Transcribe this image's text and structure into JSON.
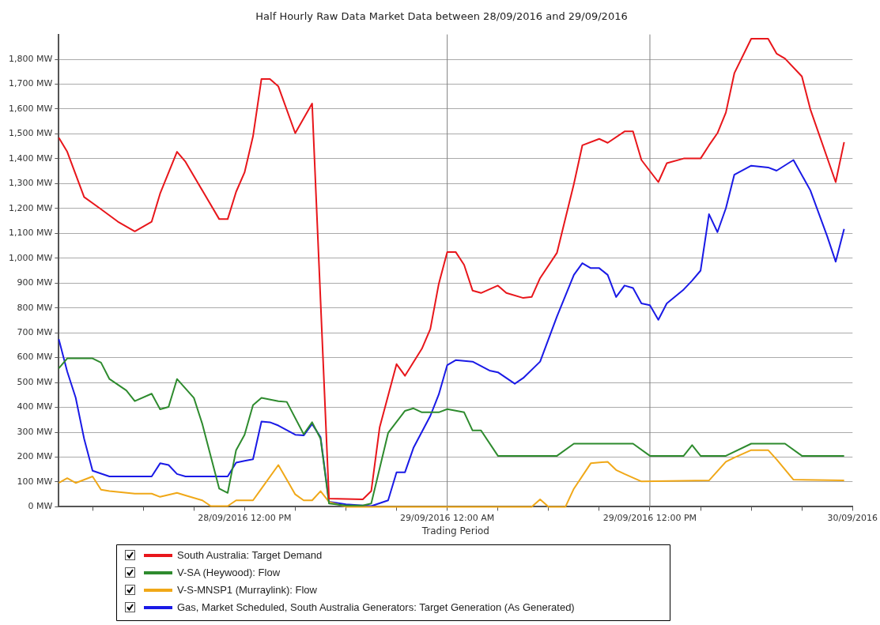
{
  "chart_data": {
    "type": "line",
    "title": "Half Hourly Raw Data Market Data between 28/09/2016 and 29/09/2016",
    "xlabel": "Trading Period",
    "xlim": [
      "2016-09-28T01:00",
      "2016-09-30T00:00"
    ],
    "xticks": [
      {
        "value": "2016-09-28T03:00",
        "label": null
      },
      {
        "value": "2016-09-28T06:00",
        "label": null
      },
      {
        "value": "2016-09-28T09:00",
        "label": null
      },
      {
        "value": "2016-09-28T12:00",
        "label": "28/09/2016 12:00 PM"
      },
      {
        "value": "2016-09-28T15:00",
        "label": null
      },
      {
        "value": "2016-09-28T18:00",
        "label": null
      },
      {
        "value": "2016-09-28T21:00",
        "label": null
      },
      {
        "value": "2016-09-29T00:00",
        "label": "29/09/2016 12:00 AM"
      },
      {
        "value": "2016-09-29T03:00",
        "label": null
      },
      {
        "value": "2016-09-29T06:00",
        "label": null
      },
      {
        "value": "2016-09-29T09:00",
        "label": null
      },
      {
        "value": "2016-09-29T12:00",
        "label": "29/09/2016 12:00 PM"
      },
      {
        "value": "2016-09-29T15:00",
        "label": null
      },
      {
        "value": "2016-09-29T18:00",
        "label": null
      },
      {
        "value": "2016-09-29T21:00",
        "label": null
      },
      {
        "value": "2016-09-30T00:00",
        "label": "30/09/2016"
      }
    ],
    "ylim": [
      0,
      1900
    ],
    "yticks": [
      {
        "value": 0,
        "label": "0 MW"
      },
      {
        "value": 100,
        "label": "100 MW"
      },
      {
        "value": 200,
        "label": "200 MW"
      },
      {
        "value": 300,
        "label": "300 MW"
      },
      {
        "value": 400,
        "label": "400 MW"
      },
      {
        "value": 500,
        "label": "500 MW"
      },
      {
        "value": 600,
        "label": "600 MW"
      },
      {
        "value": 700,
        "label": "700 MW"
      },
      {
        "value": 800,
        "label": "800 MW"
      },
      {
        "value": 900,
        "label": "900 MW"
      },
      {
        "value": 1000,
        "label": "1,000 MW"
      },
      {
        "value": 1100,
        "label": "1,100 MW"
      },
      {
        "value": 1200,
        "label": "1,200 MW"
      },
      {
        "value": 1300,
        "label": "1,300 MW"
      },
      {
        "value": 1400,
        "label": "1,400 MW"
      },
      {
        "value": 1500,
        "label": "1,500 MW"
      },
      {
        "value": 1600,
        "label": "1,600 MW"
      },
      {
        "value": 1700,
        "label": "1,700 MW"
      },
      {
        "value": 1800,
        "label": "1,800 MW"
      }
    ],
    "grid": "y",
    "legend": "bottom",
    "marker": "none",
    "ref_lines": [
      {
        "axis": "x",
        "value": "2016-09-29T00:00",
        "color": "#808080"
      },
      {
        "axis": "x",
        "value": "2016-09-29T12:00",
        "color": "#808080"
      }
    ],
    "series": [
      {
        "name": "South Australia: Target Demand",
        "color": "#e8161b",
        "x": [
          "2016-09-28T01:00",
          "2016-09-28T01:30",
          "2016-09-28T02:30",
          "2016-09-28T03:30",
          "2016-09-28T04:30",
          "2016-09-28T05:30",
          "2016-09-28T06:30",
          "2016-09-28T07:00",
          "2016-09-28T08:00",
          "2016-09-28T08:30",
          "2016-09-28T10:30",
          "2016-09-28T11:00",
          "2016-09-28T11:30",
          "2016-09-28T12:00",
          "2016-09-28T12:30",
          "2016-09-28T13:00",
          "2016-09-28T13:30",
          "2016-09-28T14:00",
          "2016-09-28T15:00",
          "2016-09-28T16:00",
          "2016-09-28T17:00",
          "2016-09-28T19:00",
          "2016-09-28T19:30",
          "2016-09-28T20:00",
          "2016-09-28T21:00",
          "2016-09-28T21:30",
          "2016-09-28T22:30",
          "2016-09-28T23:00",
          "2016-09-28T23:30",
          "2016-09-29T00:00",
          "2016-09-29T00:30",
          "2016-09-29T01:00",
          "2016-09-29T01:30",
          "2016-09-29T02:00",
          "2016-09-29T03:00",
          "2016-09-29T03:30",
          "2016-09-29T04:30",
          "2016-09-29T05:00",
          "2016-09-29T05:30",
          "2016-09-29T06:30",
          "2016-09-29T07:30",
          "2016-09-29T08:00",
          "2016-09-29T09:00",
          "2016-09-29T09:30",
          "2016-09-29T10:30",
          "2016-09-29T11:00",
          "2016-09-29T11:30",
          "2016-09-29T12:30",
          "2016-09-29T13:00",
          "2016-09-29T14:00",
          "2016-09-29T15:00",
          "2016-09-29T15:30",
          "2016-09-29T16:00",
          "2016-09-29T16:30",
          "2016-09-29T17:00",
          "2016-09-29T18:00",
          "2016-09-29T19:00",
          "2016-09-29T19:30",
          "2016-09-29T20:00",
          "2016-09-29T21:00",
          "2016-09-29T21:30",
          "2016-09-29T23:00",
          "2016-09-29T23:30"
        ],
        "values": [
          1485,
          1428,
          1246,
          1197,
          1147,
          1108,
          1147,
          1260,
          1428,
          1388,
          1157,
          1157,
          1267,
          1345,
          1490,
          1721,
          1721,
          1691,
          1503,
          1622,
          33,
          30,
          63,
          320,
          574,
          527,
          636,
          715,
          897,
          1025,
          1025,
          973,
          870,
          860,
          890,
          860,
          840,
          844,
          920,
          1022,
          1299,
          1454,
          1480,
          1464,
          1510,
          1510,
          1395,
          1306,
          1382,
          1401,
          1401,
          1454,
          1503,
          1586,
          1744,
          1883,
          1883,
          1823,
          1803,
          1731,
          1599,
          1306,
          1467
        ]
      },
      {
        "name": "V-SA (Heywood): Flow",
        "color": "#2e8b2e",
        "x": [
          "2016-09-28T01:00",
          "2016-09-28T01:30",
          "2016-09-28T03:00",
          "2016-09-28T03:30",
          "2016-09-28T04:00",
          "2016-09-28T05:00",
          "2016-09-28T05:30",
          "2016-09-28T06:30",
          "2016-09-28T07:00",
          "2016-09-28T07:30",
          "2016-09-28T08:00",
          "2016-09-28T09:00",
          "2016-09-28T09:30",
          "2016-09-28T10:30",
          "2016-09-28T11:00",
          "2016-09-28T11:30",
          "2016-09-28T12:00",
          "2016-09-28T12:30",
          "2016-09-28T13:00",
          "2016-09-28T14:00",
          "2016-09-28T14:30",
          "2016-09-28T15:30",
          "2016-09-28T16:00",
          "2016-09-28T16:30",
          "2016-09-28T17:00",
          "2016-09-28T18:00",
          "2016-09-28T19:00",
          "2016-09-28T19:30",
          "2016-09-28T20:30",
          "2016-09-28T21:30",
          "2016-09-28T22:00",
          "2016-09-28T22:30",
          "2016-09-28T23:30",
          "2016-09-29T00:00",
          "2016-09-29T01:00",
          "2016-09-29T01:30",
          "2016-09-29T02:00",
          "2016-09-29T03:00",
          "2016-09-29T06:30",
          "2016-09-29T07:30",
          "2016-09-29T11:00",
          "2016-09-29T12:00",
          "2016-09-29T14:00",
          "2016-09-29T14:30",
          "2016-09-29T15:00",
          "2016-09-29T16:30",
          "2016-09-29T18:00",
          "2016-09-29T20:00",
          "2016-09-29T21:00",
          "2016-09-29T23:30"
        ],
        "values": [
          557,
          597,
          597,
          580,
          514,
          468,
          425,
          455,
          392,
          402,
          514,
          438,
          333,
          73,
          56,
          228,
          290,
          409,
          438,
          425,
          422,
          292,
          340,
          274,
          13,
          5,
          5,
          13,
          297,
          386,
          396,
          380,
          380,
          393,
          380,
          307,
          307,
          205,
          205,
          254,
          254,
          205,
          205,
          248,
          205,
          205,
          254,
          254,
          205,
          205
        ]
      },
      {
        "name": "V-S-MNSP1 (Murraylink): Flow",
        "color": "#f0a818",
        "x": [
          "2016-09-28T01:00",
          "2016-09-28T01:30",
          "2016-09-28T02:00",
          "2016-09-28T03:00",
          "2016-09-28T03:30",
          "2016-09-28T04:00",
          "2016-09-28T05:30",
          "2016-09-28T06:30",
          "2016-09-28T07:00",
          "2016-09-28T08:00",
          "2016-09-28T08:30",
          "2016-09-28T09:30",
          "2016-09-28T10:00",
          "2016-09-28T11:00",
          "2016-09-28T11:30",
          "2016-09-28T12:30",
          "2016-09-28T13:00",
          "2016-09-28T14:00",
          "2016-09-28T14:30",
          "2016-09-28T15:00",
          "2016-09-28T15:30",
          "2016-09-28T16:00",
          "2016-09-28T16:30",
          "2016-09-28T17:00",
          "2016-09-28T18:00",
          "2016-09-29T04:30",
          "2016-09-29T05:00",
          "2016-09-29T05:30",
          "2016-09-29T06:00",
          "2016-09-29T07:00",
          "2016-09-29T07:30",
          "2016-09-29T08:30",
          "2016-09-29T09:30",
          "2016-09-29T10:00",
          "2016-09-29T10:30",
          "2016-09-29T11:30",
          "2016-09-29T15:30",
          "2016-09-29T16:30",
          "2016-09-29T17:00",
          "2016-09-29T18:00",
          "2016-09-29T19:00",
          "2016-09-29T19:30",
          "2016-09-29T20:30",
          "2016-09-29T23:30"
        ],
        "values": [
          96,
          115,
          96,
          122,
          69,
          63,
          53,
          53,
          40,
          56,
          46,
          26,
          3,
          3,
          26,
          26,
          73,
          168,
          109,
          50,
          26,
          26,
          63,
          20,
          0,
          0,
          0,
          30,
          0,
          0,
          73,
          175,
          181,
          148,
          132,
          102,
          106,
          181,
          198,
          228,
          228,
          191,
          109,
          106
        ]
      },
      {
        "name": "Gas, Market Scheduled, South Australia Generators: Target Generation (As Generated)",
        "color": "#1a1ae6",
        "x": [
          "2016-09-28T01:00",
          "2016-09-28T01:30",
          "2016-09-28T02:00",
          "2016-09-28T02:30",
          "2016-09-28T03:00",
          "2016-09-28T04:00",
          "2016-09-28T06:30",
          "2016-09-28T07:00",
          "2016-09-28T07:30",
          "2016-09-28T08:00",
          "2016-09-28T08:30",
          "2016-09-28T11:00",
          "2016-09-28T11:30",
          "2016-09-28T12:00",
          "2016-09-28T12:30",
          "2016-09-28T13:00",
          "2016-09-28T13:30",
          "2016-09-28T14:00",
          "2016-09-28T15:00",
          "2016-09-28T15:30",
          "2016-09-28T16:00",
          "2016-09-28T16:30",
          "2016-09-28T17:00",
          "2016-09-28T18:00",
          "2016-09-28T19:30",
          "2016-09-28T20:30",
          "2016-09-28T21:00",
          "2016-09-28T21:30",
          "2016-09-28T22:00",
          "2016-09-28T23:00",
          "2016-09-28T23:30",
          "2016-09-29T00:00",
          "2016-09-29T00:30",
          "2016-09-29T01:30",
          "2016-09-29T02:30",
          "2016-09-29T03:00",
          "2016-09-29T04:00",
          "2016-09-29T04:30",
          "2016-09-29T05:30",
          "2016-09-29T06:30",
          "2016-09-29T07:30",
          "2016-09-29T08:00",
          "2016-09-29T08:30",
          "2016-09-29T09:00",
          "2016-09-29T09:30",
          "2016-09-29T10:00",
          "2016-09-29T10:30",
          "2016-09-29T11:00",
          "2016-09-29T11:30",
          "2016-09-29T12:00",
          "2016-09-29T12:30",
          "2016-09-29T13:00",
          "2016-09-29T14:00",
          "2016-09-29T14:30",
          "2016-09-29T15:00",
          "2016-09-29T15:30",
          "2016-09-29T16:00",
          "2016-09-29T16:30",
          "2016-09-29T17:00",
          "2016-09-29T18:00",
          "2016-09-29T19:00",
          "2016-09-29T19:30",
          "2016-09-29T20:30",
          "2016-09-29T21:30",
          "2016-09-29T22:30",
          "2016-09-29T23:00",
          "2016-09-29T23:30"
        ],
        "values": [
          674,
          544,
          439,
          274,
          145,
          122,
          122,
          175,
          168,
          132,
          122,
          122,
          178,
          185,
          191,
          343,
          340,
          327,
          290,
          287,
          333,
          280,
          20,
          10,
          3,
          26,
          139,
          139,
          237,
          366,
          452,
          570,
          590,
          584,
          548,
          541,
          495,
          518,
          584,
          766,
          933,
          980,
          960,
          960,
          933,
          844,
          890,
          880,
          818,
          811,
          752,
          818,
          874,
          910,
          950,
          1177,
          1105,
          1201,
          1336,
          1372,
          1365,
          1352,
          1395,
          1273,
          1088,
          986,
          1118
        ]
      }
    ]
  }
}
